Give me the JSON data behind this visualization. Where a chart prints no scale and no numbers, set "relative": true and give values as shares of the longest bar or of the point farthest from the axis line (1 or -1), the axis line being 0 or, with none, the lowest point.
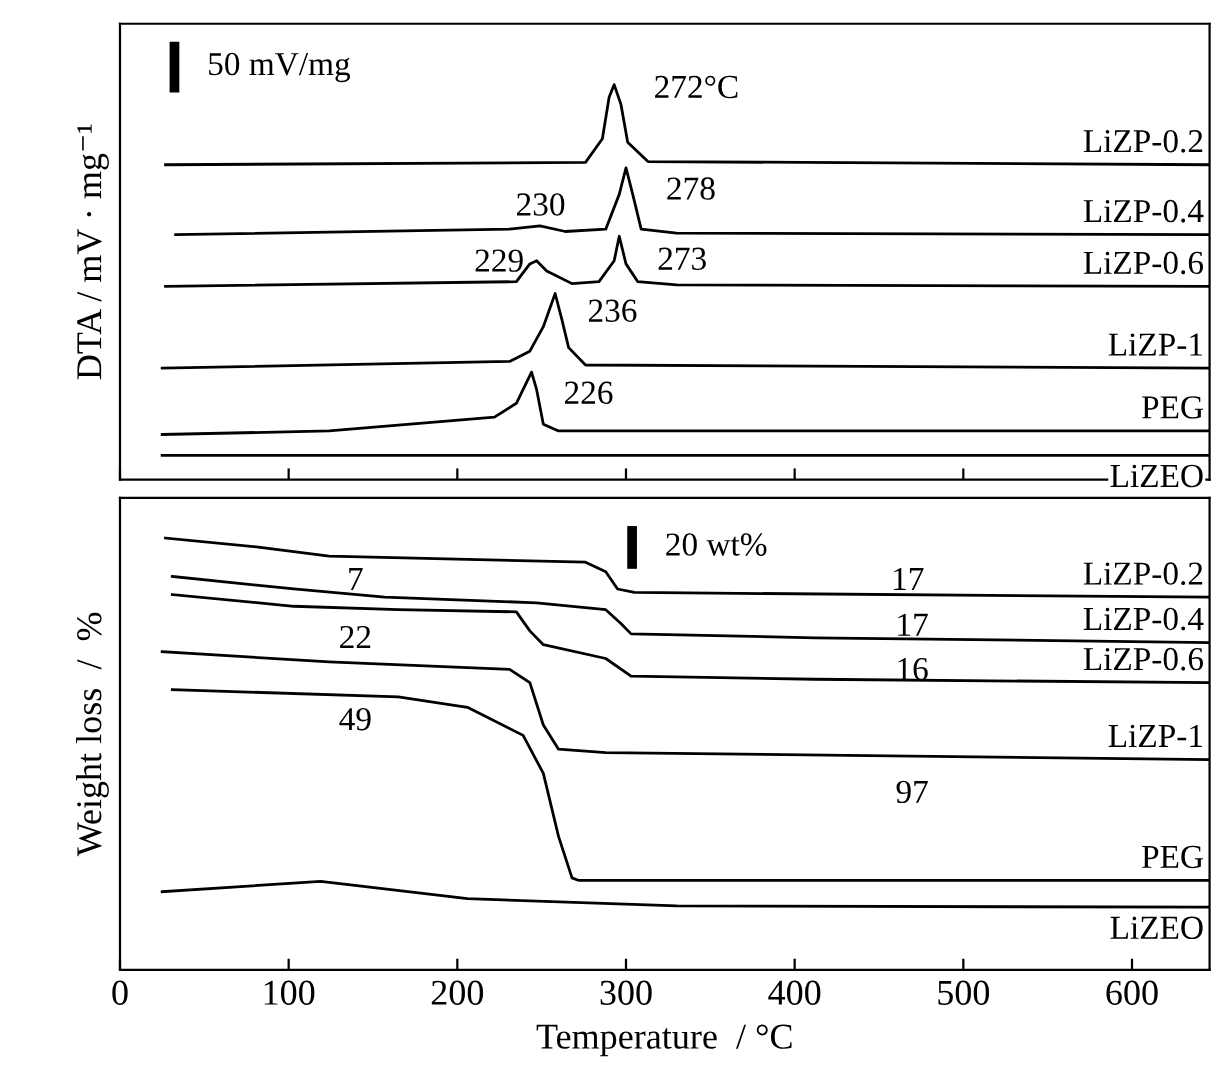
{
  "chart_data": [
    {
      "type": "line",
      "ylabel": "DTA / mV · mg⁻¹",
      "relative": true,
      "xlim": [
        0,
        646
      ],
      "xticks": [
        0,
        100,
        200,
        300,
        400,
        500,
        600
      ],
      "tick_labels": false,
      "marker": "none",
      "line_style": "solid",
      "series": [
        {
          "name": "LiZP-0.2",
          "color": "#000000",
          "x": [
            27,
            276,
            286,
            290,
            293,
            297,
            301,
            313,
            646
          ],
          "values": [
            0.797,
            0.803,
            0.863,
            0.968,
            1.0,
            0.95,
            0.854,
            0.805,
            0.797
          ]
        },
        {
          "name": "LiZP-0.4",
          "color": "#000000",
          "x": [
            33,
            231,
            249,
            264,
            288,
            296,
            300,
            304,
            309,
            330,
            646
          ],
          "values": [
            0.62,
            0.634,
            0.642,
            0.628,
            0.634,
            0.722,
            0.789,
            0.722,
            0.634,
            0.624,
            0.62
          ]
        },
        {
          "name": "LiZP-0.6",
          "color": "#000000",
          "x": [
            27,
            235,
            243,
            247,
            253,
            268,
            284,
            293,
            296,
            300,
            307,
            330,
            646
          ],
          "values": [
            0.489,
            0.501,
            0.546,
            0.554,
            0.528,
            0.496,
            0.501,
            0.554,
            0.616,
            0.546,
            0.501,
            0.493,
            0.489
          ]
        },
        {
          "name": "LiZP-1",
          "color": "#000000",
          "x": [
            25,
            231,
            243,
            251,
            258,
            262,
            266,
            276,
            646
          ],
          "values": [
            0.282,
            0.299,
            0.325,
            0.387,
            0.471,
            0.405,
            0.334,
            0.29,
            0.282
          ]
        },
        {
          "name": "PEG",
          "color": "#000000",
          "x": [
            25,
            124,
            222,
            235,
            244,
            247,
            251,
            260,
            646
          ],
          "values": [
            0.114,
            0.123,
            0.158,
            0.193,
            0.272,
            0.228,
            0.14,
            0.123,
            0.123
          ]
        },
        {
          "name": "LiZEO",
          "color": "#000000",
          "x": [
            25,
            646
          ],
          "values": [
            0.061,
            0.061
          ]
        }
      ],
      "annotations": [
        "50 mV/mg",
        "272°C",
        "278",
        "230",
        "229",
        "273",
        "236",
        "226"
      ]
    },
    {
      "type": "line",
      "xlabel": "Temperature  / °C",
      "ylabel": "Weight loss  /  %",
      "relative": true,
      "xlim": [
        0,
        646
      ],
      "xticks": [
        0,
        100,
        200,
        300,
        400,
        500,
        600
      ],
      "tick_labels": "x",
      "marker": "none",
      "line_style": "solid",
      "series": [
        {
          "name": "LiZP-0.2",
          "color": "#000000",
          "x": [
            27,
            82,
            124,
            276,
            288,
            295,
            305,
            646
          ],
          "values": [
            1.0,
            0.979,
            0.958,
            0.944,
            0.922,
            0.882,
            0.874,
            0.863
          ]
        },
        {
          "name": "LiZP-0.4",
          "color": "#000000",
          "x": [
            31,
            103,
            157,
            247,
            288,
            297,
            303,
            412,
            646
          ],
          "values": [
            0.911,
            0.882,
            0.863,
            0.85,
            0.834,
            0.802,
            0.778,
            0.769,
            0.758
          ]
        },
        {
          "name": "LiZP-0.6",
          "color": "#000000",
          "x": [
            31,
            103,
            165,
            235,
            243,
            251,
            288,
            303,
            412,
            646
          ],
          "values": [
            0.869,
            0.842,
            0.834,
            0.829,
            0.785,
            0.753,
            0.721,
            0.68,
            0.673,
            0.665
          ]
        },
        {
          "name": "LiZP-1",
          "color": "#000000",
          "x": [
            25,
            124,
            231,
            243,
            251,
            260,
            288,
            646
          ],
          "values": [
            0.737,
            0.713,
            0.696,
            0.665,
            0.567,
            0.511,
            0.503,
            0.487
          ]
        },
        {
          "name": "PEG",
          "color": "#000000",
          "x": [
            31,
            165,
            206,
            239,
            251,
            260,
            268,
            272,
            646
          ],
          "values": [
            0.649,
            0.632,
            0.608,
            0.543,
            0.455,
            0.309,
            0.213,
            0.207,
            0.207
          ]
        },
        {
          "name": "LiZEO",
          "color": "#000000",
          "x": [
            25,
            119,
            206,
            330,
            646
          ],
          "values": [
            0.181,
            0.205,
            0.165,
            0.148,
            0.145
          ]
        }
      ],
      "annotations": [
        "20 wt%",
        "17",
        "17",
        "16",
        "7",
        "22",
        "49",
        "97"
      ]
    }
  ]
}
